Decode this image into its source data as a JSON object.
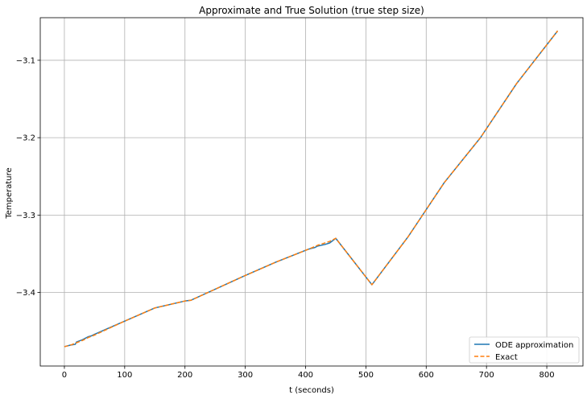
{
  "chart_data": {
    "type": "line",
    "title": "Approximate and True Solution (true step size)",
    "xlabel": "t (seconds)",
    "ylabel": "Temperature",
    "xlim": [
      -40,
      860
    ],
    "ylim": [
      -3.495,
      -3.045
    ],
    "xticks": [
      0,
      100,
      200,
      300,
      400,
      500,
      600,
      700,
      800
    ],
    "yticks": [
      -3.4,
      -3.3,
      -3.2,
      -3.1
    ],
    "ytick_labels": [
      "−3.4",
      "−3.3",
      "−3.2",
      "−3.1"
    ],
    "grid": true,
    "legend_position": "lower-right",
    "series": [
      {
        "name": "ODE approximation",
        "color": "#1f77b4",
        "style": "solid",
        "x": [
          0,
          10,
          18,
          20,
          30,
          40,
          45,
          50,
          100,
          150,
          200,
          210,
          300,
          350,
          405,
          415,
          420,
          432,
          440,
          450,
          510,
          570,
          630,
          690,
          750,
          818
        ],
        "y": [
          -3.47,
          -3.468,
          -3.467,
          -3.464,
          -3.461,
          -3.457,
          -3.456,
          -3.454,
          -3.437,
          -3.42,
          -3.411,
          -3.41,
          -3.378,
          -3.361,
          -3.344,
          -3.342,
          -3.34,
          -3.338,
          -3.336,
          -3.33,
          -3.39,
          -3.328,
          -3.258,
          -3.2,
          -3.13,
          -3.062
        ]
      },
      {
        "name": "Exact",
        "color": "#ff7f0e",
        "style": "dashed",
        "x": [
          0,
          10,
          20,
          30,
          40,
          50,
          100,
          150,
          200,
          210,
          300,
          350,
          405,
          420,
          440,
          450,
          510,
          570,
          630,
          690,
          750,
          818
        ],
        "y": [
          -3.47,
          -3.468,
          -3.465,
          -3.462,
          -3.458,
          -3.455,
          -3.437,
          -3.42,
          -3.411,
          -3.41,
          -3.378,
          -3.361,
          -3.344,
          -3.339,
          -3.334,
          -3.33,
          -3.39,
          -3.328,
          -3.258,
          -3.2,
          -3.13,
          -3.062
        ]
      }
    ]
  }
}
